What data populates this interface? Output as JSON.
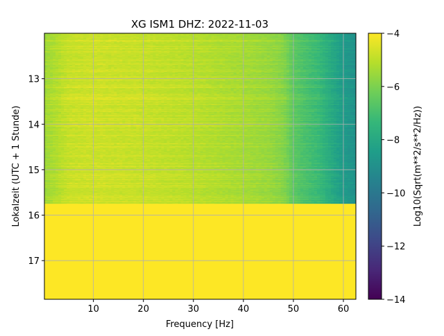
{
  "chart_data": {
    "type": "heatmap",
    "title": "XG ISM1  DHZ: 2022-11-03",
    "xlabel": "Frequency [Hz]",
    "ylabel": "Lokalzeit (UTC + 1 Stunde)",
    "xlim": [
      0.2,
      62.5
    ],
    "ylim": [
      17.85,
      12.0
    ],
    "y_inverted": true,
    "xticks": [
      10,
      20,
      30,
      40,
      50,
      60
    ],
    "yticks": [
      13,
      14,
      15,
      16,
      17
    ],
    "grid": true,
    "colorbar": {
      "label": "Log10(Sqrt(m**2/s**2/Hz))",
      "colormap": "viridis",
      "vmin": -14,
      "vmax": -4,
      "ticks": [
        -4,
        -6,
        -8,
        -10,
        -12,
        -14
      ]
    },
    "data_end_time": 15.75,
    "fill_value_after_end": -4.0,
    "spectrum_profile": {
      "frequency": [
        0.5,
        5,
        10,
        20,
        30,
        40,
        45,
        48,
        50,
        52,
        55,
        58,
        60,
        62.5
      ],
      "level": [
        -5.5,
        -4.9,
        -4.8,
        -4.9,
        -5.1,
        -5.4,
        -5.6,
        -5.9,
        -6.6,
        -6.9,
        -7.3,
        -8.1,
        -8.6,
        -9.0
      ]
    },
    "colors": {
      "colormap_stops": [
        "#440154",
        "#482878",
        "#3e4989",
        "#31688e",
        "#26828e",
        "#1f9e89",
        "#35b779",
        "#6ece58",
        "#b5de2b",
        "#fde725"
      ],
      "grid": "#b0b0b0"
    }
  }
}
